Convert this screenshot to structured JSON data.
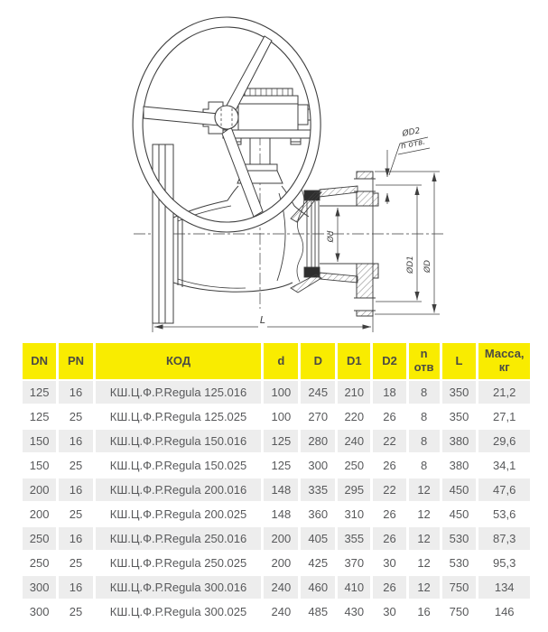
{
  "drawing": {
    "labels": {
      "hole_diameter": "ØD2",
      "holes_count": "n отв.",
      "bolt_circle": "ØD1",
      "outer_diameter": "ØD",
      "bore_diameter": "Ød",
      "length": "L"
    }
  },
  "table": {
    "headers": [
      "DN",
      "PN",
      "КОД",
      "d",
      "D",
      "D1",
      "D2",
      "n отв",
      "L",
      "Масса, кг"
    ],
    "rows": [
      [
        "125",
        "16",
        "КШ.Ц.Ф.Р.Regula 125.016",
        "100",
        "245",
        "210",
        "18",
        "8",
        "350",
        "21,2"
      ],
      [
        "125",
        "25",
        "КШ.Ц.Ф.Р.Regula 125.025",
        "100",
        "270",
        "220",
        "26",
        "8",
        "350",
        "27,1"
      ],
      [
        "150",
        "16",
        "КШ.Ц.Ф.Р.Regula 150.016",
        "125",
        "280",
        "240",
        "22",
        "8",
        "380",
        "29,6"
      ],
      [
        "150",
        "25",
        "КШ.Ц.Ф.Р.Regula 150.025",
        "125",
        "300",
        "250",
        "26",
        "8",
        "380",
        "34,1"
      ],
      [
        "200",
        "16",
        "КШ.Ц.Ф.Р.Regula 200.016",
        "148",
        "335",
        "295",
        "22",
        "12",
        "450",
        "47,6"
      ],
      [
        "200",
        "25",
        "КШ.Ц.Ф.Р.Regula 200.025",
        "148",
        "360",
        "310",
        "26",
        "12",
        "450",
        "53,6"
      ],
      [
        "250",
        "16",
        "КШ.Ц.Ф.Р.Regula 250.016",
        "200",
        "405",
        "355",
        "26",
        "12",
        "530",
        "87,3"
      ],
      [
        "250",
        "25",
        "КШ.Ц.Ф.Р.Regula 250.025",
        "200",
        "425",
        "370",
        "30",
        "12",
        "530",
        "95,3"
      ],
      [
        "300",
        "16",
        "КШ.Ц.Ф.Р.Regula 300.016",
        "240",
        "460",
        "410",
        "26",
        "12",
        "750",
        "134"
      ],
      [
        "300",
        "25",
        "КШ.Ц.Ф.Р.Regula 300.025",
        "240",
        "485",
        "430",
        "30",
        "16",
        "750",
        "146"
      ]
    ]
  },
  "colors": {
    "header_bg": "#F9EC00",
    "row_alt_bg": "#EDEDED",
    "cell_text": "#58595B",
    "line": "#3F3F3F"
  }
}
